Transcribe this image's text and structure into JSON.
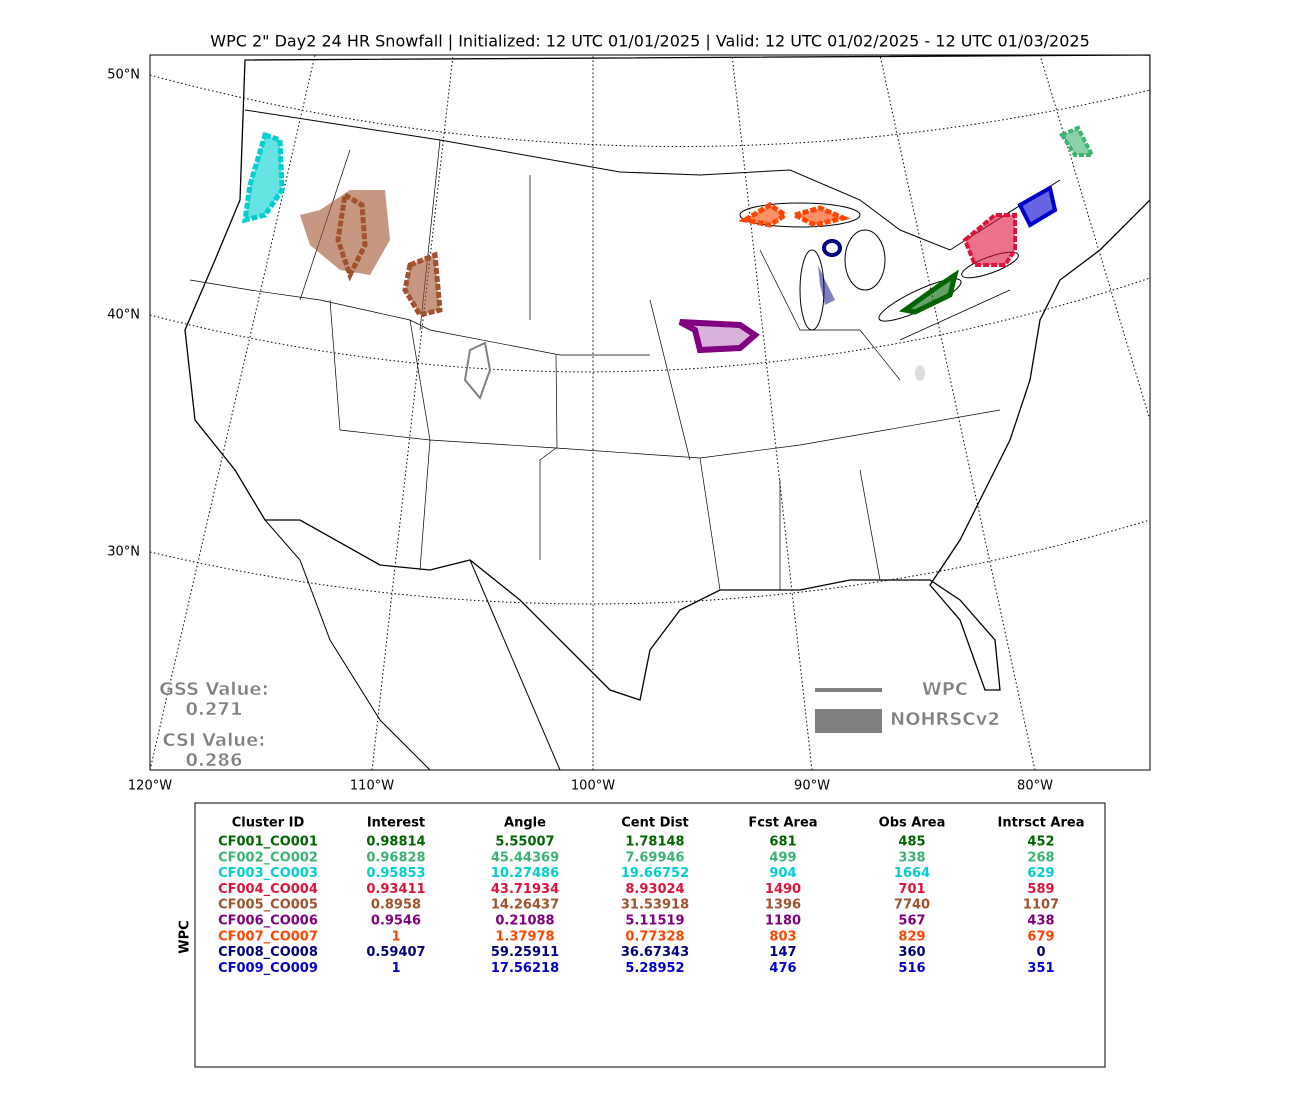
{
  "title": "WPC 2\" Day2 24 HR Snowfall | Initialized: 12 UTC 01/01/2025 | Valid: 12 UTC 01/02/2025 - 12 UTC 01/03/2025",
  "map": {
    "lat_labels": [
      "50°N",
      "40°N",
      "30°N"
    ],
    "lon_labels": [
      "120°W",
      "110°W",
      "100°W",
      "90°W",
      "80°W"
    ]
  },
  "scores": [
    {
      "label": "GSS Value:",
      "value": 0.271
    },
    {
      "label": "CSI Value:",
      "value": 0.286
    }
  ],
  "legend": [
    "WPC",
    "NOHRSCv2"
  ],
  "table": {
    "side_label": "WPC",
    "columns": [
      "Cluster ID",
      "Interest",
      "Angle",
      "Cent Dist",
      "Fcst Area",
      "Obs Area",
      "Intrsct Area"
    ],
    "rows": [
      {
        "color": "#006400",
        "cells": [
          "CF001_CO001",
          0.98814,
          5.55007,
          1.78148,
          681,
          485,
          452
        ]
      },
      {
        "color": "#3cb371",
        "cells": [
          "CF002_CO002",
          0.96828,
          45.44369,
          7.69946,
          499,
          338,
          268
        ]
      },
      {
        "color": "#00ced1",
        "cells": [
          "CF003_CO003",
          0.95853,
          10.27486,
          19.66752,
          904,
          1664,
          629
        ]
      },
      {
        "color": "#dc143c",
        "cells": [
          "CF004_CO004",
          0.93411,
          43.71934,
          8.93024,
          1490,
          701,
          589
        ]
      },
      {
        "color": "#a0522d",
        "cells": [
          "CF005_CO005",
          0.8958,
          14.26437,
          31.53918,
          1396,
          7740,
          1107
        ]
      },
      {
        "color": "#800080",
        "cells": [
          "CF006_CO006",
          0.9546,
          0.21088,
          5.11519,
          1180,
          567,
          438
        ]
      },
      {
        "color": "#ff4500",
        "cells": [
          "CF007_CO007",
          1,
          1.37978,
          0.77328,
          803,
          829,
          679
        ]
      },
      {
        "color": "#000080",
        "cells": [
          "CF008_CO008",
          0.59407,
          59.25911,
          36.67343,
          147,
          360,
          0
        ]
      },
      {
        "color": "#0000cd",
        "cells": [
          "CF009_CO009",
          1,
          17.56218,
          5.28952,
          476,
          516,
          351
        ]
      }
    ]
  }
}
